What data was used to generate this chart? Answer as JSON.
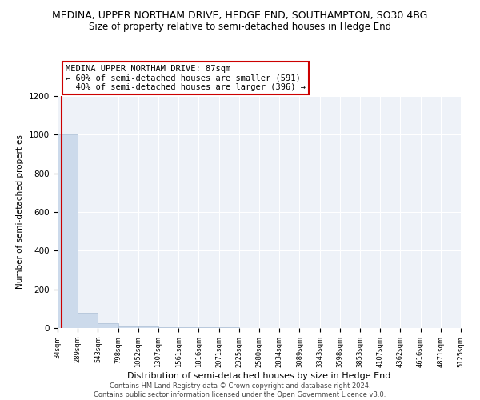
{
  "title": "MEDINA, UPPER NORTHAM DRIVE, HEDGE END, SOUTHAMPTON, SO30 4BG",
  "subtitle": "Size of property relative to semi-detached houses in Hedge End",
  "xlabel": "Distribution of semi-detached houses by size in Hedge End",
  "ylabel": "Number of semi-detached properties",
  "bar_values": [
    1000,
    80,
    25,
    10,
    7,
    5,
    4,
    3,
    3,
    2,
    2,
    2,
    2,
    1,
    1,
    1,
    1,
    1,
    1,
    1
  ],
  "bar_left_edges": [
    34,
    289,
    543,
    798,
    1052,
    1307,
    1561,
    1816,
    2071,
    2325,
    2580,
    2834,
    3089,
    3343,
    3598,
    3853,
    4107,
    4362,
    4616,
    4871
  ],
  "bar_widths": [
    255,
    254,
    255,
    254,
    255,
    254,
    255,
    255,
    254,
    255,
    254,
    255,
    254,
    255,
    255,
    254,
    255,
    254,
    255,
    254
  ],
  "bar_color": "#ccdaeb",
  "bar_edgecolor": "#aabdd4",
  "property_x": 87,
  "property_sqm": 87,
  "annotation_text": "MEDINA UPPER NORTHAM DRIVE: 87sqm\n← 60% of semi-detached houses are smaller (591)\n  40% of semi-detached houses are larger (396) →",
  "annotation_box_color": "#ffffff",
  "annotation_box_edgecolor": "#cc0000",
  "red_line_color": "#cc0000",
  "ylim": [
    0,
    1200
  ],
  "xlim": [
    34,
    5125
  ],
  "xtick_labels": [
    "34sqm",
    "289sqm",
    "543sqm",
    "798sqm",
    "1052sqm",
    "1307sqm",
    "1561sqm",
    "1816sqm",
    "2071sqm",
    "2325sqm",
    "2580sqm",
    "2834sqm",
    "3089sqm",
    "3343sqm",
    "3598sqm",
    "3853sqm",
    "4107sqm",
    "4362sqm",
    "4616sqm",
    "4871sqm",
    "5125sqm"
  ],
  "xtick_positions": [
    34,
    289,
    543,
    798,
    1052,
    1307,
    1561,
    1816,
    2071,
    2325,
    2580,
    2834,
    3089,
    3343,
    3598,
    3853,
    4107,
    4362,
    4616,
    4871,
    5125
  ],
  "ytick_positions": [
    0,
    200,
    400,
    600,
    800,
    1000,
    1200
  ],
  "footer_text": "Contains HM Land Registry data © Crown copyright and database right 2024.\nContains public sector information licensed under the Open Government Licence v3.0.",
  "background_color": "#ffffff",
  "plot_bg_color": "#eef2f8",
  "grid_color": "#ffffff",
  "title_fontsize": 9,
  "subtitle_fontsize": 8.5
}
